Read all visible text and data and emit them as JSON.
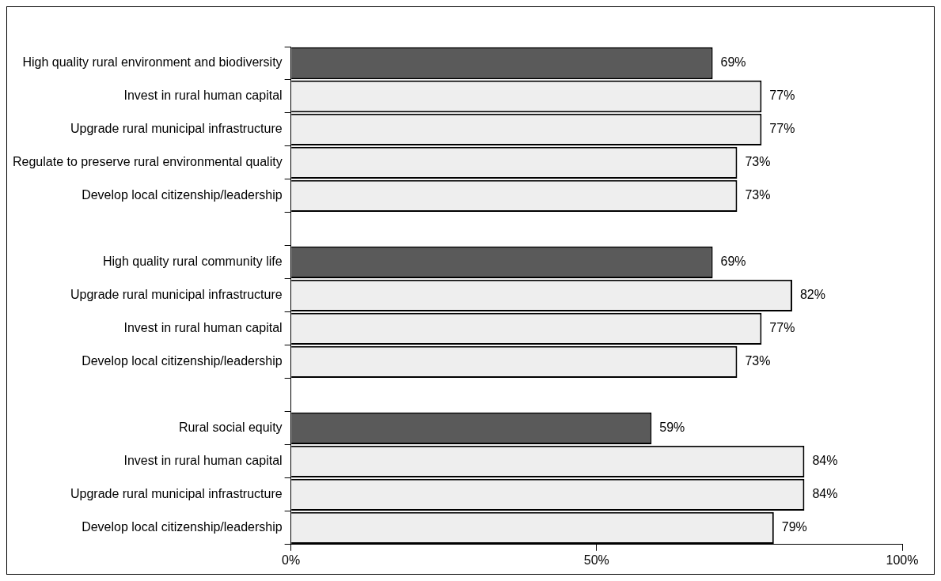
{
  "chart_data": {
    "type": "bar",
    "orientation": "horizontal",
    "categories": [
      "High quality rural environment and biodiversity",
      "Invest in rural human capital",
      "Upgrade rural municipal infrastructure",
      "Regulate to preserve rural environmental quality",
      "Develop local citizenship/leadership",
      null,
      "High quality rural community life",
      "Upgrade rural municipal infrastructure",
      "Invest in rural human capital",
      "Develop local citizenship/leadership",
      null,
      "Rural social equity",
      "Invest in rural human capital",
      "Upgrade rural municipal infrastructure",
      "Develop local citizenship/leadership"
    ],
    "values": [
      69,
      77,
      77,
      73,
      73,
      null,
      69,
      82,
      77,
      73,
      null,
      59,
      84,
      84,
      79
    ],
    "colors": [
      "#5a5a5a",
      "#eeeeee",
      "#eeeeee",
      "#eeeeee",
      "#eeeeee",
      "#eeeeee",
      "#5a5a5a",
      "#eeeeee",
      "#eeeeee",
      "#eeeeee",
      "#eeeeee",
      "#5a5a5a",
      "#eeeeee",
      "#eeeeee",
      "#eeeeee"
    ],
    "xlim": [
      0,
      100
    ],
    "xticks": [
      {
        "value": 0,
        "label": "0%"
      },
      {
        "value": 50,
        "label": "50%"
      },
      {
        "value": 100,
        "label": "100%"
      }
    ],
    "value_labels": [
      "69%",
      "77%",
      "77%",
      "73%",
      "73%",
      null,
      "69%",
      "82%",
      "77%",
      "73%",
      null,
      "59%",
      "84%",
      "84%",
      "79%"
    ],
    "grid": false,
    "legend": false
  }
}
